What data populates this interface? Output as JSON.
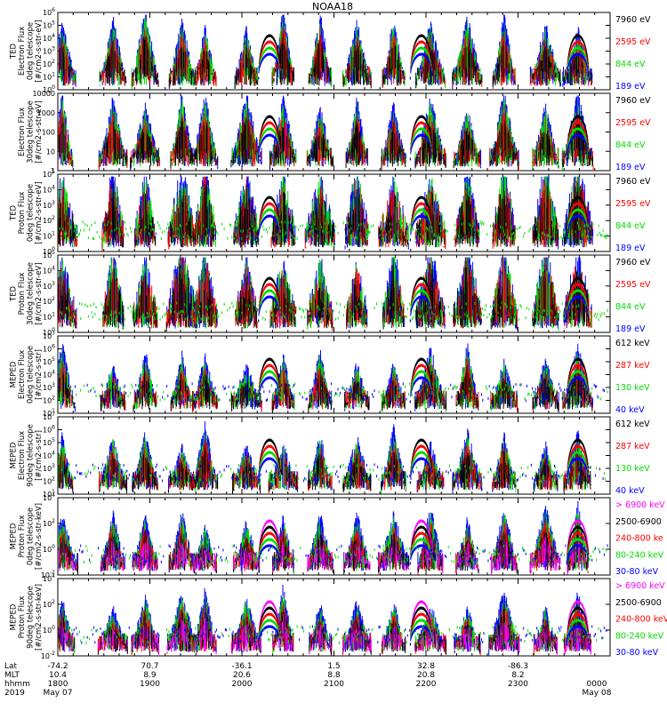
{
  "chart_data": {
    "type": "line",
    "title": "NOAA18",
    "panels": [
      {
        "ylabel": [
          "TED",
          "Electron Flux",
          "0deg telescope",
          "[#/cm2-s-str-eV]"
        ],
        "ticks": [
          "10^0",
          "10^1",
          "10^2",
          "10^3",
          "10^4",
          "10^5",
          "10^6"
        ],
        "log_range": [
          0,
          6
        ],
        "legend": [
          {
            "name": "7960 eV",
            "color": "#000000"
          },
          {
            "name": "2595 eV",
            "color": "#ff0000"
          },
          {
            "name": "844 eV",
            "color": "#00dd00"
          },
          {
            "name": "189 eV",
            "color": "#0000ff"
          }
        ],
        "profile": "ted_e"
      },
      {
        "ylabel": [
          "",
          "Electron Flux",
          "30deg telescope",
          "[#/cm2-s-str-eV]"
        ],
        "ticks": [
          "1",
          "10",
          "100",
          "1000",
          "10000"
        ],
        "log_range": [
          0,
          4
        ],
        "legend": [
          {
            "name": "7960 eV",
            "color": "#000000"
          },
          {
            "name": "2595 eV",
            "color": "#ff0000"
          },
          {
            "name": "844 eV",
            "color": "#00dd00"
          },
          {
            "name": "189 eV",
            "color": "#0000ff"
          }
        ],
        "profile": "ted_e"
      },
      {
        "ylabel": [
          "TED",
          "Proton Flux",
          "0deg telescope",
          "[#/cm2-s-str-eV]"
        ],
        "ticks": [
          "10^0",
          "10^1",
          "10^2",
          "10^3",
          "10^4",
          "10^5"
        ],
        "log_range": [
          0,
          5
        ],
        "legend": [
          {
            "name": "7960 eV",
            "color": "#000000"
          },
          {
            "name": "2595 eV",
            "color": "#ff0000"
          },
          {
            "name": "844 eV",
            "color": "#00dd00"
          },
          {
            "name": "189 eV",
            "color": "#0000ff"
          }
        ],
        "profile": "ted_p"
      },
      {
        "ylabel": [
          "TED",
          "Proton Flux",
          "30deg telescope",
          "[#/cm2-s-str-eV]"
        ],
        "ticks": [
          "10^0",
          "10^1",
          "10^2",
          "10^3",
          "10^4",
          "10^5"
        ],
        "log_range": [
          0,
          5
        ],
        "legend": [
          {
            "name": "7960 eV",
            "color": "#000000"
          },
          {
            "name": "2595 eV",
            "color": "#ff0000"
          },
          {
            "name": "844 eV",
            "color": "#00dd00"
          },
          {
            "name": "189 eV",
            "color": "#0000ff"
          }
        ],
        "profile": "ted_p"
      },
      {
        "ylabel": [
          "MEPED",
          "Electron Flux",
          "0deg telescope",
          "[#/cm2-s-str]"
        ],
        "ticks": [
          "10^1",
          "10^2",
          "10^3",
          "10^4",
          "10^5",
          "10^6",
          "10^7"
        ],
        "log_range": [
          1,
          7
        ],
        "legend": [
          {
            "name": "612 keV",
            "color": "#000000"
          },
          {
            "name": "287 keV",
            "color": "#ff0000"
          },
          {
            "name": "130 keV",
            "color": "#00dd00"
          },
          {
            "name": "40 keV",
            "color": "#0000ff"
          }
        ],
        "profile": "mep_e0"
      },
      {
        "ylabel": [
          "MEPED",
          "Electron Flux",
          "90deg telescope",
          "[#/cm2-s-str]"
        ],
        "ticks": [
          "10^1",
          "10^2",
          "10^3",
          "10^4",
          "10^5",
          "10^6",
          "10^7"
        ],
        "log_range": [
          1,
          7
        ],
        "legend": [
          {
            "name": "612 keV",
            "color": "#000000"
          },
          {
            "name": "287 keV",
            "color": "#ff0000"
          },
          {
            "name": "130 keV",
            "color": "#00dd00"
          },
          {
            "name": "40 keV",
            "color": "#0000ff"
          }
        ],
        "profile": "mep_e90"
      },
      {
        "ylabel": [
          "MEPED",
          "Proton Flux",
          "0deg telescope",
          "[#/cm2-s-str-keV]"
        ],
        "ticks": [
          "10^-2",
          "10^0",
          "10^2",
          "10^4"
        ],
        "log_range": [
          -3,
          5
        ],
        "legend": [
          {
            "name": "> 6900 keV",
            "color": "#ff00ff"
          },
          {
            "name": "2500-6900",
            "color": "#000000"
          },
          {
            "name": "240-800 ke",
            "color": "#ff0000"
          },
          {
            "name": "80-240 keV",
            "color": "#00dd00"
          },
          {
            "name": "30-80 keV",
            "color": "#0000ff"
          }
        ],
        "profile": "mep_p"
      },
      {
        "ylabel": [
          "MEPED",
          "Proton Flux",
          "90deg telescope",
          "[#/cm2-s-str-keV]"
        ],
        "ticks": [
          "10^-2",
          "10^0",
          "10^2",
          "10^4"
        ],
        "log_range": [
          -3,
          5
        ],
        "legend": [
          {
            "name": "> 6900 keV",
            "color": "#ff00ff"
          },
          {
            "name": "2500-6900",
            "color": "#000000"
          },
          {
            "name": "240-800 keV",
            "color": "#ff0000"
          },
          {
            "name": "80-240 keV",
            "color": "#00dd00"
          },
          {
            "name": "30-80 keV",
            "color": "#0000ff"
          }
        ],
        "profile": "mep_p90"
      }
    ],
    "x_axis": {
      "row_labels": [
        "Lat",
        "MLT",
        "hhmm",
        "2019"
      ],
      "columns": [
        {
          "lat": "-74.2",
          "mlt": "10.4",
          "hhmm": "1800",
          "date": "May 07"
        },
        {
          "lat": "70.7",
          "mlt": "8.9",
          "hhmm": "1900",
          "date": ""
        },
        {
          "lat": "-36.1",
          "mlt": "20.6",
          "hhmm": "2000",
          "date": ""
        },
        {
          "lat": "1.5",
          "mlt": "8.8",
          "hhmm": "2100",
          "date": ""
        },
        {
          "lat": "32.8",
          "mlt": "20.8",
          "hhmm": "2200",
          "date": ""
        },
        {
          "lat": "-86.3",
          "mlt": "8.2",
          "hhmm": "2300",
          "date": ""
        },
        {
          "lat": "",
          "mlt": "",
          "hhmm": "0000",
          "date": "May 08"
        }
      ],
      "range_hours": [
        18,
        24
      ]
    },
    "passes": [
      18.05,
      18.6,
      18.95,
      19.35,
      19.6,
      20.05,
      20.45,
      20.85,
      21.25,
      21.65,
      22.05,
      22.45,
      22.85,
      23.3,
      23.65
    ],
    "auroral_bumps": [
      20.3,
      21.95,
      23.65
    ]
  }
}
